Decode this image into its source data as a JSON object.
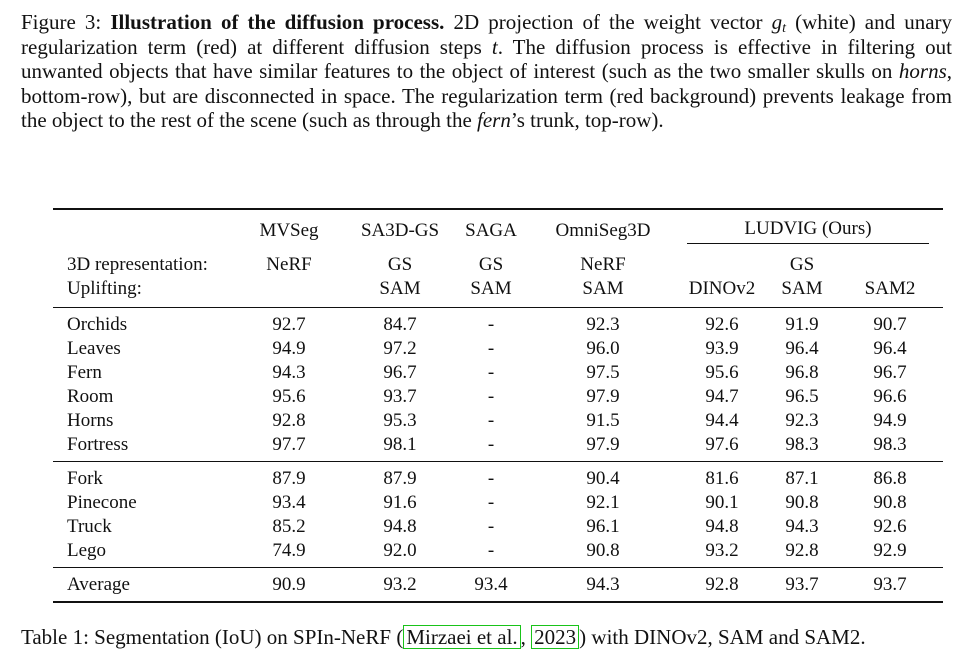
{
  "figure_caption": {
    "label": "Figure 3:",
    "bold_title": "Illustration of the diffusion process.",
    "t1": "2D projection of the weight vector",
    "math_g": "g",
    "math_sub": "t",
    "t2": "(white) and unary regularization term (red) at different diffusion steps",
    "math_t": "t",
    "t3": ". The diffusion process is effective in filtering out unwanted objects that have similar features to the object of interest (such as the two smaller skulls on",
    "italic_horns": "horns",
    "t4": ", bottom-row), but are disconnected in space. The regularization term (red background) prevents leakage from the object to the rest of the scene (such as through the",
    "italic_fern": "fern",
    "t5": "’s trunk, top-row)."
  },
  "table": {
    "methods": [
      "MVSeg",
      "SA3D-GS",
      "SAGA",
      "OmniSeg3D"
    ],
    "ludvig_header": "LUDVIG (Ours)",
    "representation_label": "3D representation:",
    "uplifting_label": "Uplifting:",
    "representations": [
      "NeRF",
      "GS",
      "GS",
      "NeRF",
      "GS"
    ],
    "upliftings": [
      "",
      "SAM",
      "SAM",
      "SAM",
      "DINOv2",
      "SAM",
      "SAM2"
    ],
    "groups": [
      [
        {
          "scene": "Orchids",
          "values": [
            "92.7",
            "84.7",
            "-",
            "92.3",
            "92.6",
            "91.9",
            "90.7"
          ]
        },
        {
          "scene": "Leaves",
          "values": [
            "94.9",
            "97.2",
            "-",
            "96.0",
            "93.9",
            "96.4",
            "96.4"
          ]
        },
        {
          "scene": "Fern",
          "values": [
            "94.3",
            "96.7",
            "-",
            "97.5",
            "95.6",
            "96.8",
            "96.7"
          ]
        },
        {
          "scene": "Room",
          "values": [
            "95.6",
            "93.7",
            "-",
            "97.9",
            "94.7",
            "96.5",
            "96.6"
          ]
        },
        {
          "scene": "Horns",
          "values": [
            "92.8",
            "95.3",
            "-",
            "91.5",
            "94.4",
            "92.3",
            "94.9"
          ]
        },
        {
          "scene": "Fortress",
          "values": [
            "97.7",
            "98.1",
            "-",
            "97.9",
            "97.6",
            "98.3",
            "98.3"
          ]
        }
      ],
      [
        {
          "scene": "Fork",
          "values": [
            "87.9",
            "87.9",
            "-",
            "90.4",
            "81.6",
            "87.1",
            "86.8"
          ]
        },
        {
          "scene": "Pinecone",
          "values": [
            "93.4",
            "91.6",
            "-",
            "92.1",
            "90.1",
            "90.8",
            "90.8"
          ]
        },
        {
          "scene": "Truck",
          "values": [
            "85.2",
            "94.8",
            "-",
            "96.1",
            "94.8",
            "94.3",
            "92.6"
          ]
        },
        {
          "scene": "Lego",
          "values": [
            "74.9",
            "92.0",
            "-",
            "90.8",
            "93.2",
            "92.8",
            "92.9"
          ]
        }
      ]
    ],
    "average": {
      "scene": "Average",
      "values": [
        "90.9",
        "93.2",
        "93.4",
        "94.3",
        "92.8",
        "93.7",
        "93.7"
      ]
    }
  },
  "table_caption": {
    "t1": "Table 1: Segmentation (IoU) on SPIn-NeRF (",
    "cite_author": "Mirzaei et al.",
    "t2": ", ",
    "cite_year": "2023",
    "t3": ") with DINOv2, SAM and SAM2.",
    "cite_box_color": "#19c319"
  }
}
